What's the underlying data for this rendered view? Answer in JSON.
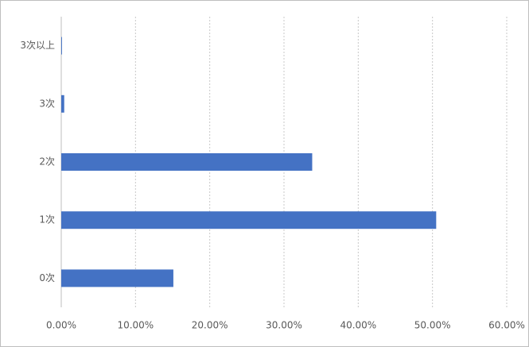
{
  "chart_data": {
    "type": "hbar",
    "categories": [
      "3次以上",
      "3次",
      "2次",
      "1次",
      "0次"
    ],
    "values": [
      0.1,
      0.4,
      33.8,
      50.5,
      15.1
    ],
    "color": "#4472c4",
    "xlim": [
      0,
      60
    ],
    "xticks": [
      {
        "value": 0,
        "label": "0.00%"
      },
      {
        "value": 10,
        "label": "10.00%"
      },
      {
        "value": 20,
        "label": "20.00%"
      },
      {
        "value": 30,
        "label": "30.00%"
      },
      {
        "value": 40,
        "label": "40.00%"
      },
      {
        "value": 50,
        "label": "50.00%"
      },
      {
        "value": 60,
        "label": "60.00%"
      }
    ],
    "grid": true
  }
}
